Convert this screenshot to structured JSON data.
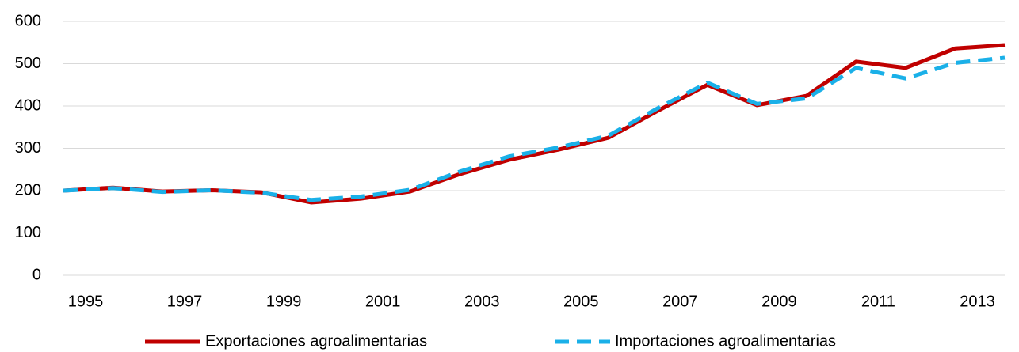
{
  "chart_data": {
    "type": "line",
    "x": [
      1995,
      1996,
      1997,
      1998,
      1999,
      2000,
      2001,
      2002,
      2003,
      2004,
      2005,
      2006,
      2007,
      2008,
      2009,
      2010,
      2011,
      2012,
      2013,
      2014
    ],
    "series": [
      {
        "name": "Exportaciones agroalimentarias",
        "color": "#c00000",
        "dash": "solid",
        "values": [
          200,
          207,
          198,
          201,
          196,
          172,
          181,
          198,
          239,
          273,
          297,
          325,
          389,
          450,
          402,
          424,
          505,
          490,
          536,
          544
        ]
      },
      {
        "name": "Importaciones agroalimentarias",
        "color": "#1ab0e8",
        "dash": "dashed",
        "values": [
          200,
          206,
          197,
          201,
          195,
          178,
          186,
          202,
          245,
          281,
          302,
          330,
          395,
          455,
          405,
          418,
          490,
          465,
          502,
          514
        ]
      }
    ],
    "xlim": [
      1995,
      2014
    ],
    "xticks": [
      1995,
      1997,
      1999,
      2001,
      2003,
      2005,
      2007,
      2009,
      2011,
      2013
    ],
    "ylim": [
      0,
      600
    ],
    "yticks": [
      0,
      100,
      200,
      300,
      400,
      500,
      600
    ],
    "grid": true,
    "legend": "bottom"
  }
}
